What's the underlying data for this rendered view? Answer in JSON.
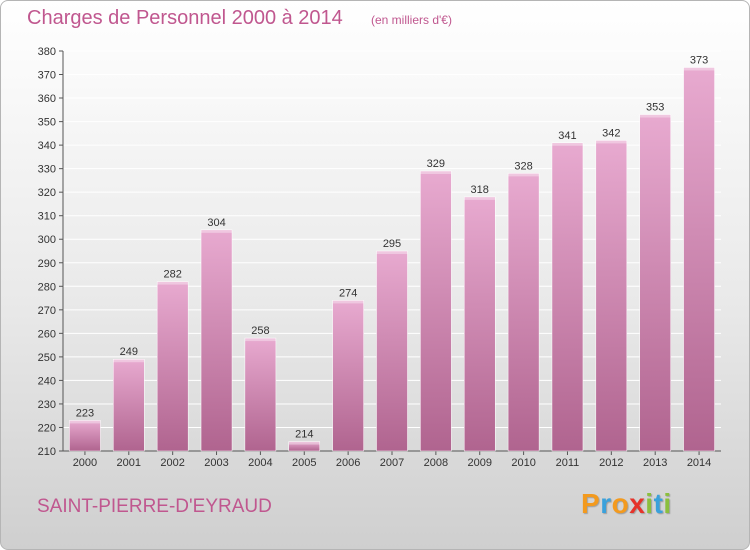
{
  "header": {
    "title": "Charges de Personnel 2000 à 2014",
    "subtitle": "(en milliers d'€)"
  },
  "footer": {
    "commune": "SAINT-PIERRE-D'EYRAUD",
    "logo_text": "Proxiti"
  },
  "colors": {
    "accent": "#c0578f",
    "bar_light": "#e8aad0",
    "bar_dark": "#b0648f",
    "logo": [
      "#f39a1e",
      "#3aa1db",
      "#f39a1e",
      "#e6332a",
      "#8bbf3d",
      "#3aa1db",
      "#8bbf3d"
    ]
  },
  "chart_data": {
    "type": "bar",
    "categories": [
      "2000",
      "2001",
      "2002",
      "2003",
      "2004",
      "2005",
      "2006",
      "2007",
      "2008",
      "2009",
      "2010",
      "2011",
      "2012",
      "2013",
      "2014"
    ],
    "values": [
      223,
      249,
      282,
      304,
      258,
      214,
      274,
      295,
      329,
      318,
      328,
      341,
      342,
      353,
      373
    ],
    "ylim": [
      210,
      380
    ],
    "yticks": [
      210,
      220,
      230,
      240,
      250,
      260,
      270,
      280,
      290,
      300,
      310,
      320,
      330,
      340,
      350,
      360,
      370,
      380
    ],
    "grid": true,
    "data_labels": true
  }
}
